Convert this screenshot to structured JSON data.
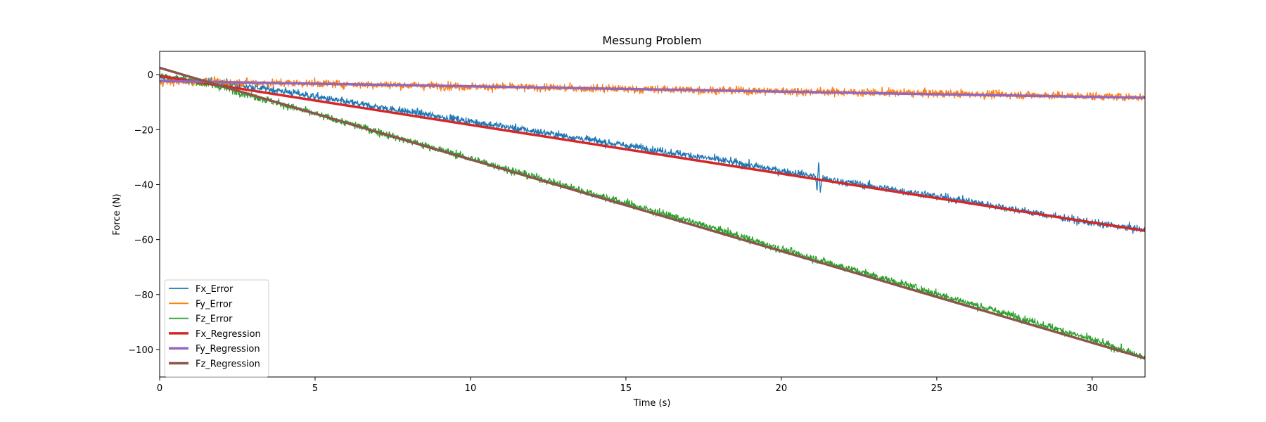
{
  "chart_data": {
    "type": "line",
    "title": "Messung Problem",
    "xlabel": "Time (s)",
    "ylabel": "Force (N)",
    "xlim": [
      0,
      31.7
    ],
    "ylim": [
      -110,
      8.5
    ],
    "xticks": [
      0,
      5,
      10,
      15,
      20,
      25,
      30
    ],
    "xtick_labels": [
      "0",
      "5",
      "10",
      "15",
      "20",
      "25",
      "30"
    ],
    "yticks": [
      0,
      -20,
      -40,
      -60,
      -80,
      -100
    ],
    "ytick_labels": [
      "0",
      "−20",
      "−40",
      "−60",
      "−80",
      "−100"
    ],
    "grid": false,
    "legend_position": "lower-left",
    "series": [
      {
        "name": "Fx_Error",
        "color": "#1f77b4",
        "kind": "noisy",
        "noise": 1.2,
        "x": [
          0,
          2,
          4,
          6,
          8,
          10,
          12,
          14,
          16,
          18,
          20,
          21.1,
          21.15,
          21.2,
          21.25,
          21.3,
          22,
          24,
          26,
          28,
          30,
          31.7
        ],
        "y": [
          -1,
          -3,
          -6,
          -10,
          -13.5,
          -17,
          -20.5,
          -24,
          -27.5,
          -31,
          -35,
          -37,
          -42,
          -31,
          -43,
          -38,
          -39,
          -42.5,
          -46,
          -50,
          -54,
          -56.5
        ]
      },
      {
        "name": "Fy_Error",
        "color": "#ff7f0e",
        "kind": "noisy",
        "noise": 1.3,
        "x": [
          0,
          5,
          10,
          15,
          20,
          25,
          30,
          31.7
        ],
        "y": [
          -2.5,
          -3.2,
          -4.3,
          -5.2,
          -6.0,
          -6.8,
          -7.8,
          -8.3
        ]
      },
      {
        "name": "Fz_Error",
        "color": "#2ca02c",
        "kind": "noisy",
        "noise": 1.2,
        "x": [
          0,
          2,
          4,
          6,
          8,
          10,
          12,
          14,
          16,
          18,
          20,
          22,
          24,
          26,
          28,
          30,
          31.7
        ],
        "y": [
          0,
          -4.5,
          -11,
          -17.5,
          -24,
          -30.5,
          -37,
          -43.5,
          -50,
          -56.5,
          -63.5,
          -70,
          -76.5,
          -83,
          -89.5,
          -96.5,
          -103
        ]
      },
      {
        "name": "Fx_Regression",
        "color": "#d62728",
        "kind": "line",
        "width": 3.5,
        "x": [
          0,
          31.7
        ],
        "y": [
          -0.5,
          -56.8
        ]
      },
      {
        "name": "Fy_Regression",
        "color": "#9467bd",
        "kind": "line",
        "width": 3.5,
        "x": [
          0,
          31.7
        ],
        "y": [
          -2.3,
          -8.4
        ]
      },
      {
        "name": "Fz_Regression",
        "color": "#8c564b",
        "kind": "line",
        "width": 3.5,
        "x": [
          0,
          31.7
        ],
        "y": [
          2.5,
          -103.2
        ]
      }
    ]
  }
}
